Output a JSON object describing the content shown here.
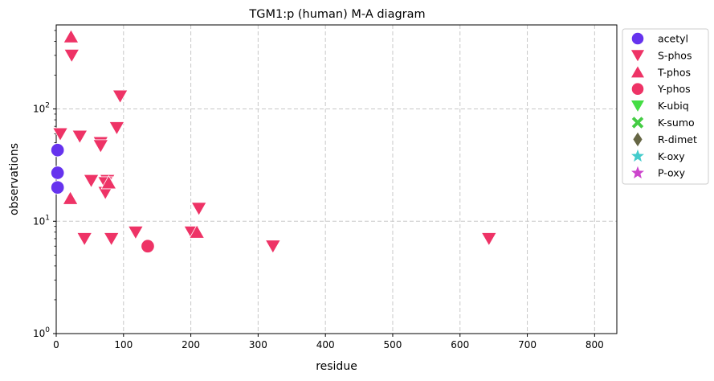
{
  "chart_data": {
    "type": "scatter",
    "title": "TGM1:p (human) M-A diagram",
    "xlabel": "residue",
    "ylabel": "observations",
    "xlim": [
      0,
      833
    ],
    "ylim": [
      1,
      560
    ],
    "yscale": "log",
    "grid": true,
    "legend_position": "outside-right",
    "x_ticks": [
      {
        "value": 0,
        "label": "0"
      },
      {
        "value": 100,
        "label": "100"
      },
      {
        "value": 200,
        "label": "200"
      },
      {
        "value": 300,
        "label": "300"
      },
      {
        "value": 400,
        "label": "400"
      },
      {
        "value": 500,
        "label": "500"
      },
      {
        "value": 600,
        "label": "600"
      },
      {
        "value": 700,
        "label": "700"
      },
      {
        "value": 800,
        "label": "800"
      }
    ],
    "y_ticks": [
      {
        "value": 1,
        "base": "10",
        "exp": "0"
      },
      {
        "value": 10,
        "base": "10",
        "exp": "1"
      },
      {
        "value": 100,
        "base": "10",
        "exp": "2"
      }
    ],
    "series": [
      {
        "name": "acetyl",
        "marker": "circle",
        "color": "#6633ee",
        "points": [
          [
            2,
            43
          ],
          [
            2,
            27
          ],
          [
            2,
            20
          ]
        ]
      },
      {
        "name": "S-phos",
        "marker": "triangle-down",
        "color": "#ee3366",
        "points": [
          [
            23,
            300
          ],
          [
            95,
            130
          ],
          [
            6,
            60
          ],
          [
            90,
            68
          ],
          [
            35,
            57
          ],
          [
            66,
            50
          ],
          [
            66,
            47
          ],
          [
            52,
            23
          ],
          [
            76,
            23
          ],
          [
            73,
            22
          ],
          [
            73,
            18
          ],
          [
            212,
            13
          ],
          [
            118,
            8
          ],
          [
            201,
            8
          ],
          [
            42,
            7
          ],
          [
            82,
            7
          ],
          [
            322,
            6
          ],
          [
            643,
            7
          ]
        ]
      },
      {
        "name": "T-phos",
        "marker": "triangle-up",
        "color": "#ee3366",
        "points": [
          [
            22,
            440
          ],
          [
            21,
            16
          ],
          [
            78,
            22
          ],
          [
            209,
            8
          ]
        ]
      },
      {
        "name": "Y-phos",
        "marker": "circle",
        "color": "#ee3366",
        "points": [
          [
            136,
            6
          ]
        ]
      },
      {
        "name": "K-ubiq",
        "marker": "triangle-down",
        "color": "#44dd44",
        "points": []
      },
      {
        "name": "K-sumo",
        "marker": "x",
        "color": "#44cc44",
        "points": []
      },
      {
        "name": "R-dimet",
        "marker": "diamond",
        "color": "#666644",
        "points": []
      },
      {
        "name": "K-oxy",
        "marker": "star",
        "color": "#44cccc",
        "points": []
      },
      {
        "name": "P-oxy",
        "marker": "star",
        "color": "#cc44cc",
        "points": []
      }
    ]
  }
}
